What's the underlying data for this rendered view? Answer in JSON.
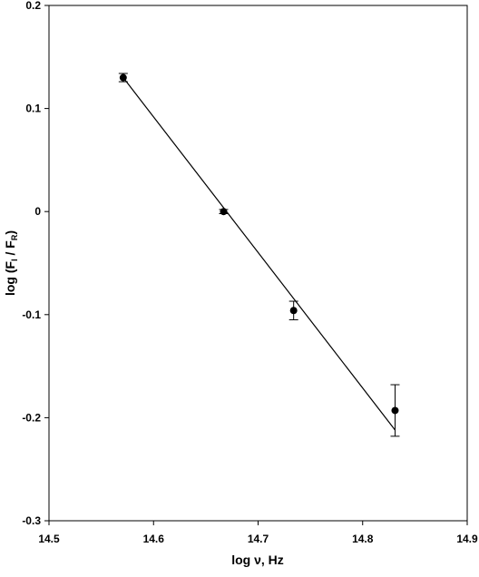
{
  "chart_data": {
    "type": "scatter",
    "xlabel": "log ν, Hz",
    "ylabel": [
      "log (F",
      "I",
      " / F",
      "R",
      ")"
    ],
    "x": [
      14.571,
      14.667,
      14.734,
      14.831
    ],
    "values": [
      0.13,
      0.0,
      -0.096,
      -0.193
    ],
    "errors": [
      0.004,
      0.002,
      0.009,
      0.025
    ],
    "color": "#000000",
    "fit": {
      "x": [
        14.571,
        14.831
      ],
      "values": [
        0.13,
        -0.212
      ]
    },
    "xlim": [
      14.5,
      14.9
    ],
    "xticks": [
      14.5,
      14.6,
      14.7,
      14.8,
      14.9
    ],
    "ylim": [
      -0.3,
      0.2
    ],
    "yticks": [
      0.2,
      0.1,
      0,
      -0.1,
      -0.2,
      -0.3
    ]
  }
}
